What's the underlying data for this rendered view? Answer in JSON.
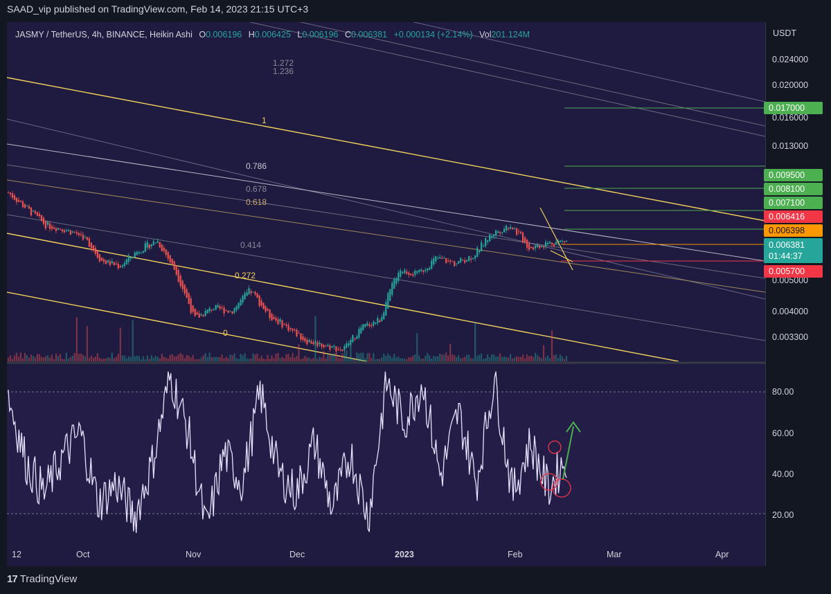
{
  "header": {
    "published": "SAAD_vip published on TradingView.com, Feb 14, 2023 21:15 UTC+3"
  },
  "legend": {
    "symbol": "JASMY / TetherUS, 4h, BINANCE, Heikin Ashi",
    "o_label": "O",
    "o": "0.006196",
    "h_label": "H",
    "h": "0.006425",
    "l_label": "L",
    "l": "0.006196",
    "c_label": "C",
    "c": "0.006381",
    "change": "+0.000134 (+2.14%)",
    "vol_label": "Vol",
    "vol": "201.124M"
  },
  "price_axis": {
    "unit": "USDT",
    "ticks": [
      "0.024000",
      "0.020000",
      "0.016000",
      "0.013000",
      "0.005000",
      "0.004000",
      "0.003300"
    ],
    "tags": [
      {
        "text": "0.017000",
        "color": "#4caf50"
      },
      {
        "text": "0.009500",
        "color": "#4caf50"
      },
      {
        "text": "0.008100",
        "color": "#4caf50"
      },
      {
        "text": "0.007100",
        "color": "#4caf50"
      },
      {
        "text": "0.006416",
        "color": "#f23645"
      },
      {
        "text": "0.006398",
        "color": "#ff9800"
      },
      {
        "text": "0.005700",
        "color": "#f23645"
      }
    ],
    "current": {
      "price": "0.006381",
      "countdown": "01:44:37",
      "color": "#26a69a"
    }
  },
  "rsi_axis": {
    "ticks": [
      "80.00",
      "60.00",
      "40.00",
      "20.00"
    ]
  },
  "time_axis": {
    "labels": [
      "12",
      "Oct",
      "Nov",
      "Dec",
      "2023",
      "Feb",
      "Mar",
      "Apr"
    ]
  },
  "footer": {
    "logo": "17",
    "brand": "TradingView"
  },
  "chart_data": {
    "type": "line",
    "title": "JASMY / TetherUS, 4h, BINANCE, Heikin Ashi",
    "fib_channel_levels": [
      "1.272",
      "1.236",
      "1",
      "0.786",
      "0.678",
      "0.618",
      "0.414",
      "0.272",
      "0"
    ],
    "price_levels": [
      0.017,
      0.0095,
      0.0081,
      0.0071,
      0.006416,
      0.006398,
      0.006381,
      0.0057
    ],
    "rsi_bands": [
      80,
      20
    ],
    "price_series": [
      {
        "t": "Sep 12",
        "v": 0.0088
      },
      {
        "t": "Sep 20",
        "v": 0.0079
      },
      {
        "t": "Oct 1",
        "v": 0.0071
      },
      {
        "t": "Oct 10",
        "v": 0.0069
      },
      {
        "t": "Oct 15",
        "v": 0.0066
      },
      {
        "t": "Oct 20",
        "v": 0.0056
      },
      {
        "t": "Oct 26",
        "v": 0.0054
      },
      {
        "t": "Nov 1",
        "v": 0.006
      },
      {
        "t": "Nov 4",
        "v": 0.0064
      },
      {
        "t": "Nov 8",
        "v": 0.0052
      },
      {
        "t": "Nov 10",
        "v": 0.0038
      },
      {
        "t": "Nov 16",
        "v": 0.0041
      },
      {
        "t": "Nov 22",
        "v": 0.004
      },
      {
        "t": "Dec 1",
        "v": 0.0046
      },
      {
        "t": "Dec 8",
        "v": 0.0039
      },
      {
        "t": "Dec 15",
        "v": 0.0036
      },
      {
        "t": "Dec 18",
        "v": 0.0033
      },
      {
        "t": "Dec 25",
        "v": 0.0032
      },
      {
        "t": "Dec 30",
        "v": 0.0031
      },
      {
        "t": "Jan 3",
        "v": 0.0036
      },
      {
        "t": "Jan 8",
        "v": 0.0038
      },
      {
        "t": "Jan 14",
        "v": 0.0053
      },
      {
        "t": "Jan 18",
        "v": 0.0051
      },
      {
        "t": "Jan 24",
        "v": 0.0057
      },
      {
        "t": "Jan 30",
        "v": 0.0055
      },
      {
        "t": "Feb 3",
        "v": 0.0058
      },
      {
        "t": "Feb 5",
        "v": 0.0067
      },
      {
        "t": "Feb 7",
        "v": 0.0071
      },
      {
        "t": "Feb 10",
        "v": 0.0061
      },
      {
        "t": "Feb 12",
        "v": 0.0063
      },
      {
        "t": "Feb 14",
        "v": 0.006381
      }
    ],
    "rsi_series": [
      {
        "t": "Sep 12",
        "v": 78
      },
      {
        "t": "Sep 16",
        "v": 45
      },
      {
        "t": "Sep 22",
        "v": 30
      },
      {
        "t": "Sep 28",
        "v": 48
      },
      {
        "t": "Oct 3",
        "v": 60
      },
      {
        "t": "Oct 8",
        "v": 25
      },
      {
        "t": "Oct 14",
        "v": 35
      },
      {
        "t": "Oct 20",
        "v": 18
      },
      {
        "t": "Oct 26",
        "v": 45
      },
      {
        "t": "Nov 1",
        "v": 88
      },
      {
        "t": "Nov 5",
        "v": 60
      },
      {
        "t": "Nov 9",
        "v": 12
      },
      {
        "t": "Nov 15",
        "v": 50
      },
      {
        "t": "Nov 22",
        "v": 35
      },
      {
        "t": "Nov 28",
        "v": 80
      },
      {
        "t": "Dec 3",
        "v": 40
      },
      {
        "t": "Dec 9",
        "v": 30
      },
      {
        "t": "Dec 14",
        "v": 55
      },
      {
        "t": "Dec 20",
        "v": 22
      },
      {
        "t": "Dec 27",
        "v": 50
      },
      {
        "t": "Dec 31",
        "v": 18
      },
      {
        "t": "Jan 3",
        "v": 85
      },
      {
        "t": "Jan 8",
        "v": 65
      },
      {
        "t": "Jan 14",
        "v": 85
      },
      {
        "t": "Jan 19",
        "v": 38
      },
      {
        "t": "Jan 25",
        "v": 70
      },
      {
        "t": "Jan 31",
        "v": 35
      },
      {
        "t": "Feb 4",
        "v": 87
      },
      {
        "t": "Feb 8",
        "v": 30
      },
      {
        "t": "Feb 10",
        "v": 55
      },
      {
        "t": "Feb 12",
        "v": 32
      },
      {
        "t": "Feb 14",
        "v": 48
      }
    ],
    "annotations": [
      "rsi higher low circles",
      "green up arrow"
    ]
  }
}
